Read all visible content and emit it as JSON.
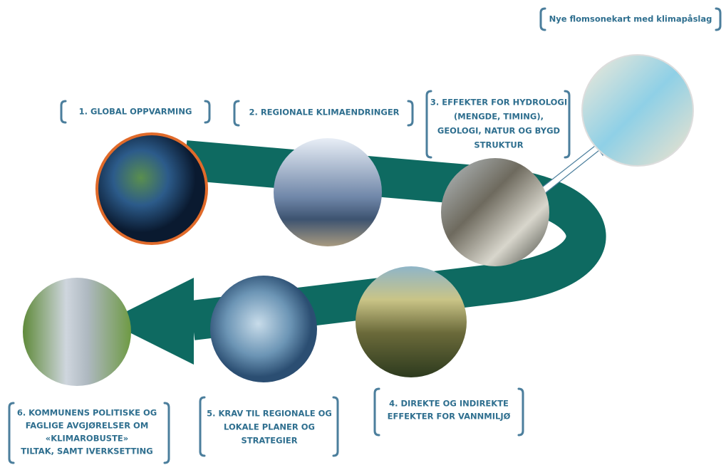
{
  "map_label": "Nye flomsonekart med klimapåslag",
  "steps": [
    {
      "lines": [
        "1. GLOBAL OPPVARMING"
      ]
    },
    {
      "lines": [
        "2. REGIONALE KLIMAENDRINGER"
      ]
    },
    {
      "lines": [
        "3. EFFEKTER FOR HYDROLOGI",
        "(MENGDE, TIMING),",
        "GEOLOGI, NATUR OG BYGD",
        "STRUKTUR"
      ]
    },
    {
      "lines": [
        "4. DIREKTE OG INDIREKTE",
        "EFFEKTER FOR VANNMILJØ"
      ]
    },
    {
      "lines": [
        "5. KRAV TIL REGIONALE OG",
        "LOKALE PLANER OG",
        "STRATEGIER"
      ]
    },
    {
      "lines": [
        "6. KOMMUNENS POLITISKE OG",
        "FAGLIGE AVGJØRELSER OM",
        "«KLIMAROBUSTE»",
        "TILTAK, SAMT IVERKSETTING"
      ]
    }
  ]
}
